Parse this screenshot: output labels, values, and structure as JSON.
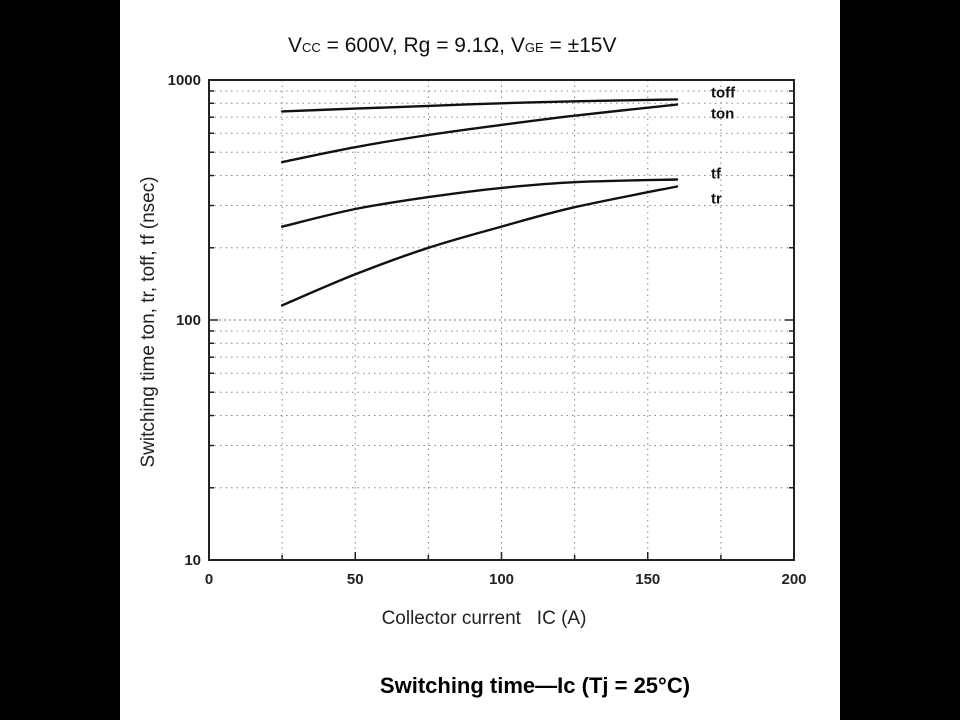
{
  "conditions": {
    "text": "VCC = 600V, Rg = 9.1Ω, VGE = ±15V",
    "vcc_main": "V",
    "vcc_sub": "CC",
    "vcc_value": " = 600V, Rg = 9.1Ω, V",
    "vge_sub": "GE",
    "vge_value": " = ±15V"
  },
  "caption": "Switching time—Ic (Tj = 25°C)",
  "chart_data": {
    "type": "line",
    "title": "VCC = 600V, Rg = 9.1Ω, VGE = ±15V",
    "xlabel": "Collector current   IC (A)",
    "ylabel": "Switching time ton, tr, toff, tf (nsec)",
    "xlim": [
      0,
      200
    ],
    "ylim": [
      10,
      1000
    ],
    "yscale": "log",
    "grid": true,
    "x_ticks": [
      0,
      50,
      100,
      150,
      200
    ],
    "y_ticks": [
      10,
      100,
      1000
    ],
    "series": [
      {
        "name": "toff",
        "x": [
          25,
          50,
          75,
          100,
          125,
          160
        ],
        "y": [
          740,
          760,
          780,
          800,
          815,
          830
        ]
      },
      {
        "name": "ton",
        "x": [
          25,
          50,
          75,
          100,
          125,
          160
        ],
        "y": [
          455,
          525,
          590,
          650,
          710,
          790
        ]
      },
      {
        "name": "tf",
        "x": [
          25,
          50,
          75,
          100,
          125,
          160
        ],
        "y": [
          245,
          290,
          325,
          355,
          375,
          385
        ]
      },
      {
        "name": "tr",
        "x": [
          25,
          50,
          75,
          100,
          125,
          160
        ],
        "y": [
          115,
          155,
          200,
          245,
          295,
          360
        ]
      }
    ]
  }
}
